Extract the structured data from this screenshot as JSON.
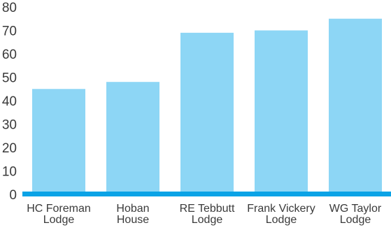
{
  "chart_data": {
    "type": "bar",
    "categories": [
      [
        "HC Foreman",
        "Lodge"
      ],
      [
        "Hoban",
        "House"
      ],
      [
        "RE Tebbutt",
        "Lodge"
      ],
      [
        "Frank Vickery",
        "Lodge"
      ],
      [
        "WG Taylor",
        "Lodge"
      ]
    ],
    "values": [
      45,
      48,
      69,
      70,
      75
    ],
    "yticks": [
      "0",
      "10",
      "20",
      "30",
      "40",
      "50",
      "60",
      "70",
      "80"
    ],
    "ylim": [
      0,
      80
    ],
    "grid": false,
    "legend": "none",
    "title": "",
    "xlabel": "",
    "ylabel": "",
    "colors": {
      "bar": "#8dd6f5",
      "baseline": "#0aa3e6"
    }
  }
}
